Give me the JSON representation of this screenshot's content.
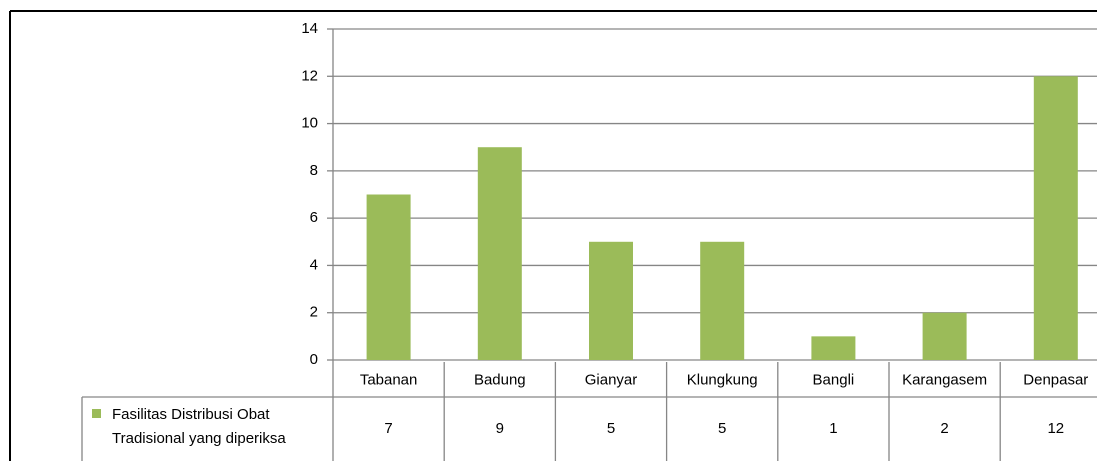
{
  "chart_data": {
    "type": "bar",
    "categories": [
      "Tabanan",
      "Badung",
      "Gianyar",
      "Klungkung",
      "Bangli",
      "Karangasem",
      "Denpasar"
    ],
    "series": [
      {
        "name": "Fasilitas Distribusi Obat Tradisional yang diperiksa",
        "color": "#9bbb59",
        "values": [
          7,
          9,
          5,
          5,
          1,
          2,
          12
        ]
      }
    ],
    "ylim": [
      0,
      14
    ],
    "yticks": [
      0,
      2,
      4,
      6,
      8,
      10,
      12,
      14
    ],
    "grid": true,
    "data_table": true
  }
}
